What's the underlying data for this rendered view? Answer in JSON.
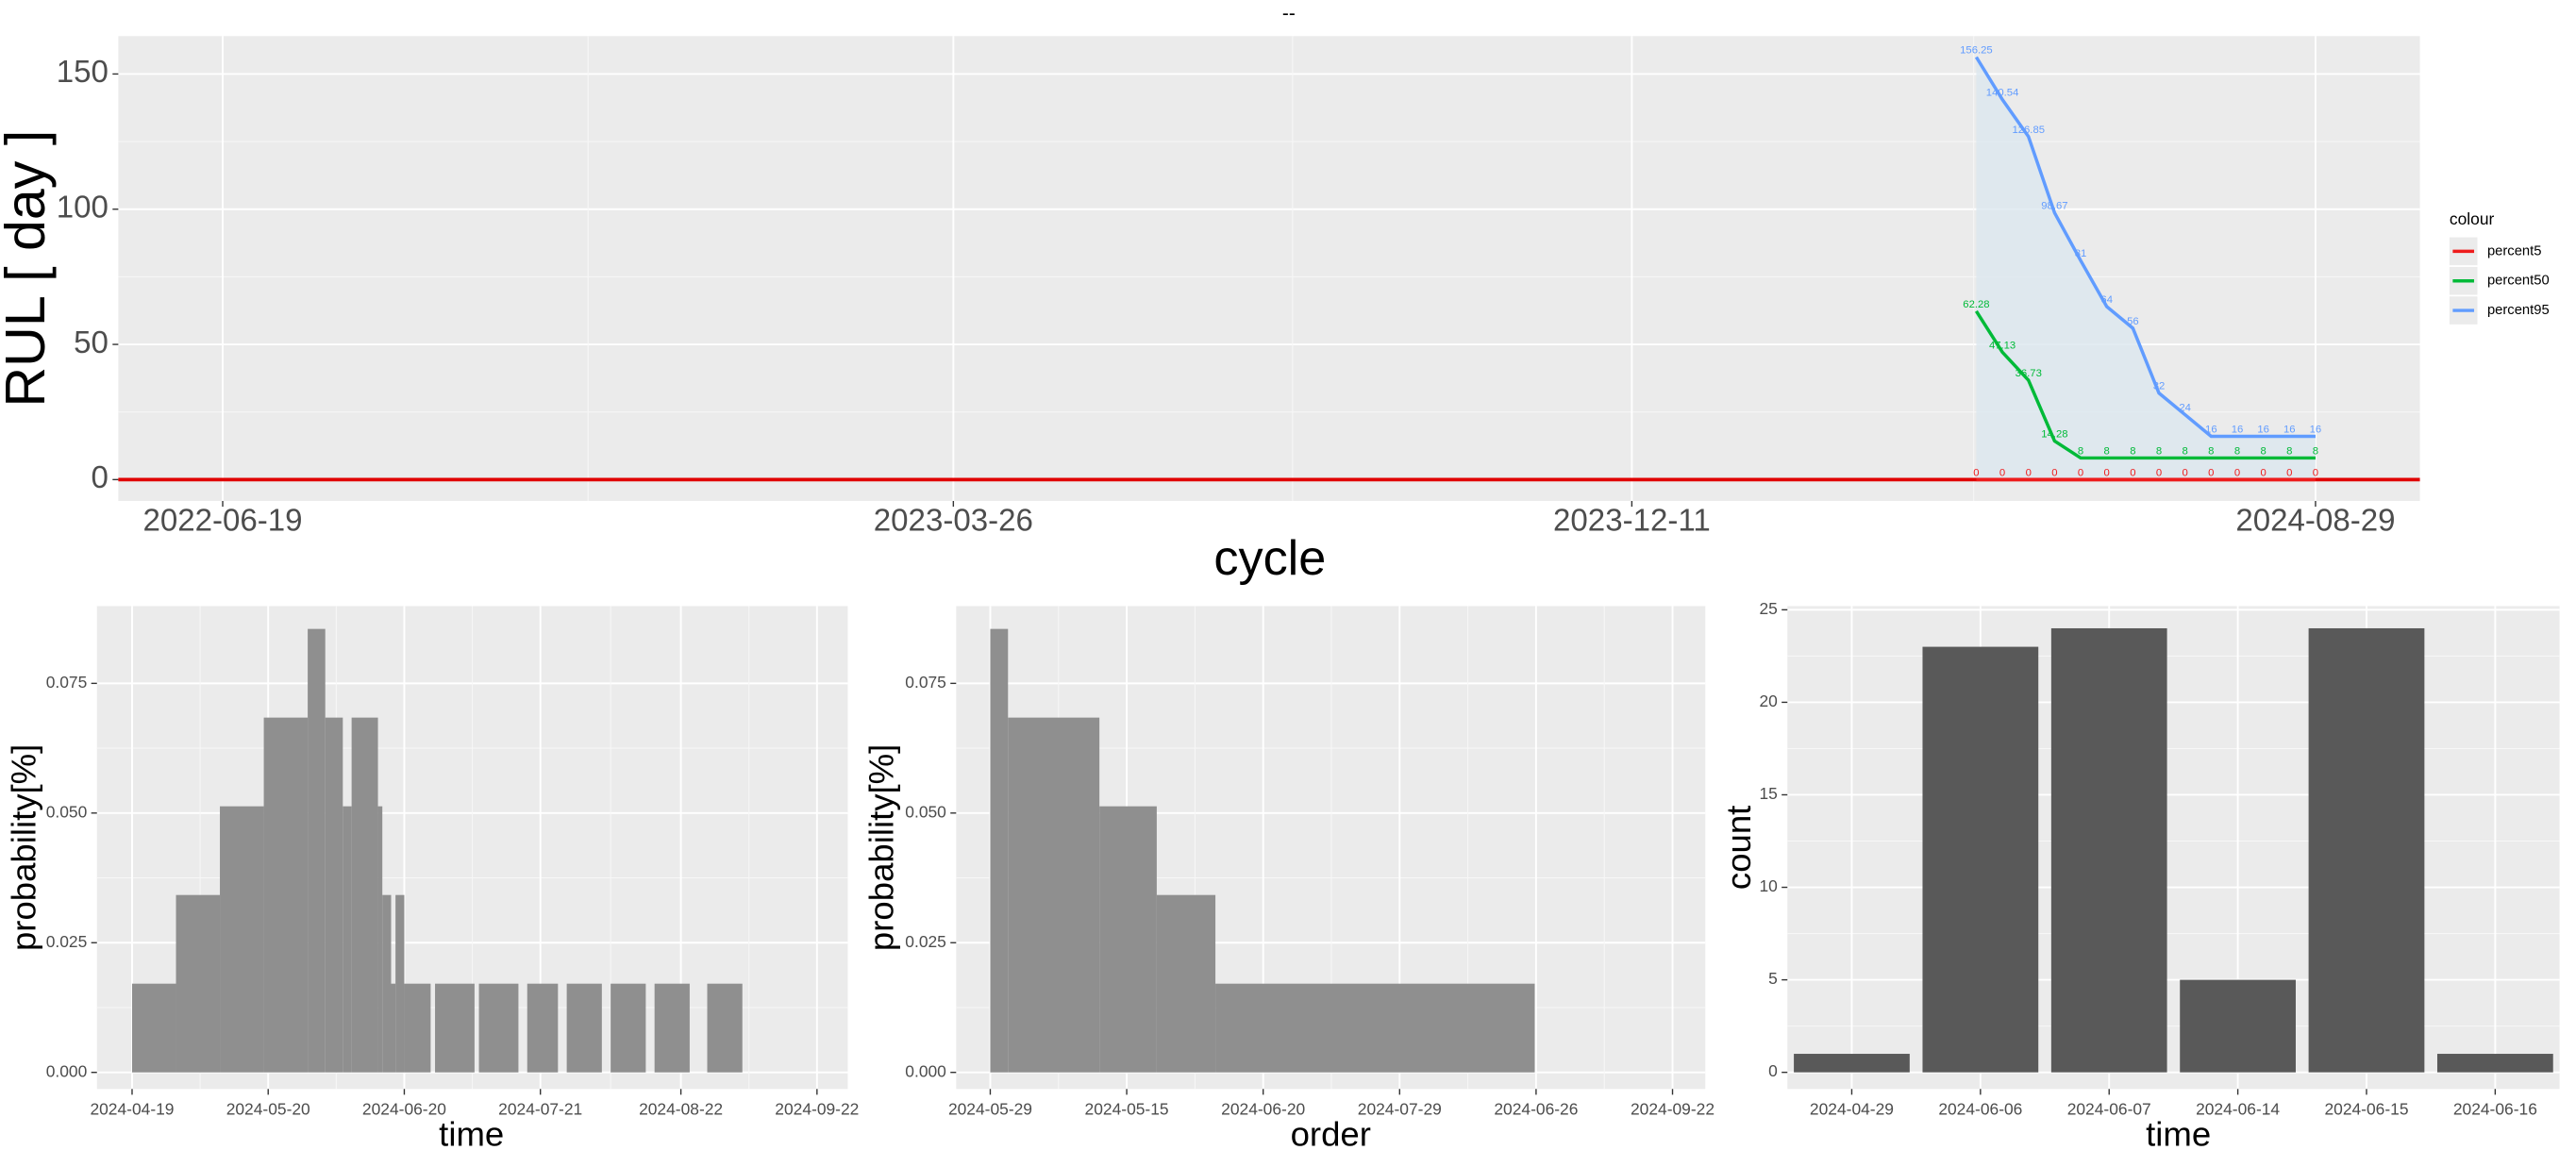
{
  "chart_data": [
    {
      "type": "line",
      "title": "--",
      "ylabel": "RUL [ day ]",
      "xlabel": "cycle",
      "x": [
        "2024-04-21",
        "2024-05-01",
        "2024-05-11",
        "2024-05-21",
        "2024-05-31",
        "2024-06-10",
        "2024-06-20",
        "2024-06-30",
        "2024-07-10",
        "2024-07-20",
        "2024-07-30",
        "2024-08-09",
        "2024-08-19",
        "2024-08-29"
      ],
      "xlim": [
        "2022-05-10",
        "2024-10-08"
      ],
      "xticks": [
        "2022-06-19",
        "2023-03-26",
        "2023-12-11",
        "2024-08-29"
      ],
      "ylim": [
        -7.9,
        164
      ],
      "yticks": [
        0,
        50,
        100,
        150
      ],
      "series": [
        {
          "name": "percent5",
          "color": "#ee1c1c",
          "values": [
            0,
            0,
            0,
            0,
            0,
            0,
            0,
            0,
            0,
            0,
            0,
            0,
            0,
            0
          ]
        },
        {
          "name": "percent50",
          "color": "#00ba38",
          "values": [
            62.28,
            47.13,
            36.73,
            14.28,
            8,
            8,
            8,
            8,
            8,
            8,
            8,
            8,
            8,
            8
          ]
        },
        {
          "name": "percent95",
          "color": "#619cff",
          "values": [
            156.25,
            140.54,
            126.85,
            98.67,
            81,
            64,
            56,
            32,
            24,
            16,
            16,
            16,
            16,
            16
          ]
        }
      ],
      "ribbon_color": "#dce7ef",
      "hline": 0,
      "hline_color": "#e00000",
      "legend": {
        "title": "colour",
        "position": "right"
      },
      "grid": true
    },
    {
      "type": "histogram",
      "ylabel": "probability[%]",
      "xlabel": "time",
      "color": "#8f8f8f",
      "bins": [
        "2024-04-19",
        "2024-04-29",
        "2024-05-09",
        "2024-05-19",
        "2024-05-29",
        "2024-06-02",
        "2024-06-06",
        "2024-06-08",
        "2024-06-14",
        "2024-06-15",
        "2024-06-17",
        "2024-06-18",
        "2024-06-20",
        "2024-06-26",
        "2024-06-27",
        "2024-07-06",
        "2024-07-07",
        "2024-07-16",
        "2024-07-18",
        "2024-07-25",
        "2024-07-27",
        "2024-08-04",
        "2024-08-06",
        "2024-08-14",
        "2024-08-16",
        "2024-08-24",
        "2024-08-28",
        "2024-09-05"
      ],
      "values": [
        0.0171,
        0.0342,
        0.0513,
        0.0684,
        0.0855,
        0.0684,
        0.0513,
        0.0684,
        0.0513,
        0.0342,
        0.0171,
        0.0342,
        0.0171,
        0,
        0.0171,
        0,
        0.0171,
        0,
        0.0171,
        0,
        0.0171,
        0,
        0.0171,
        0,
        0.0171,
        0,
        0.0171
      ],
      "xlim": [
        "2024-04-11",
        "2024-09-29"
      ],
      "xticks": [
        "2024-04-19",
        "2024-05-20",
        "2024-06-20",
        "2024-07-21",
        "2024-08-22",
        "2024-09-22"
      ],
      "ylim": [
        -0.0032,
        0.0899
      ],
      "yticks": [
        {
          "value": 0,
          "label": "0.000"
        },
        {
          "value": 0.025,
          "label": "0.025"
        },
        {
          "value": 0.05,
          "label": "0.050"
        },
        {
          "value": 0.075,
          "label": "0.075"
        }
      ],
      "grid": true
    },
    {
      "type": "histogram",
      "ylabel": "probability[%]",
      "xlabel": "order",
      "color": "#8f8f8f",
      "bins": [
        0,
        0.13,
        0.8,
        1.22,
        1.65,
        3.99
      ],
      "values": [
        0.0855,
        0.0684,
        0.0513,
        0.0342,
        0.0171
      ],
      "xlim": [
        -0.25,
        5.24
      ],
      "xticks": [
        {
          "value": 0,
          "label": "2024-05-29"
        },
        {
          "value": 1,
          "label": "2024-05-15"
        },
        {
          "value": 2,
          "label": "2024-06-20"
        },
        {
          "value": 3,
          "label": "2024-07-29"
        },
        {
          "value": 4,
          "label": "2024-06-26"
        },
        {
          "value": 5,
          "label": "2024-09-22"
        }
      ],
      "ylim": [
        -0.0032,
        0.0899
      ],
      "yticks": [
        {
          "value": 0,
          "label": "0.000"
        },
        {
          "value": 0.025,
          "label": "0.025"
        },
        {
          "value": 0.05,
          "label": "0.050"
        },
        {
          "value": 0.075,
          "label": "0.075"
        }
      ],
      "grid": true
    },
    {
      "type": "bar",
      "ylabel": "count",
      "xlabel": "time",
      "color": "#595959",
      "categories": [
        "2024-04-29",
        "2024-06-06",
        "2024-06-07",
        "2024-06-14",
        "2024-06-15",
        "2024-06-16"
      ],
      "values": [
        1,
        23,
        24,
        5,
        24,
        1
      ],
      "ylim": [
        -0.9,
        25.2
      ],
      "yticks": [
        0,
        5,
        10,
        15,
        20,
        25
      ],
      "grid": true
    }
  ]
}
